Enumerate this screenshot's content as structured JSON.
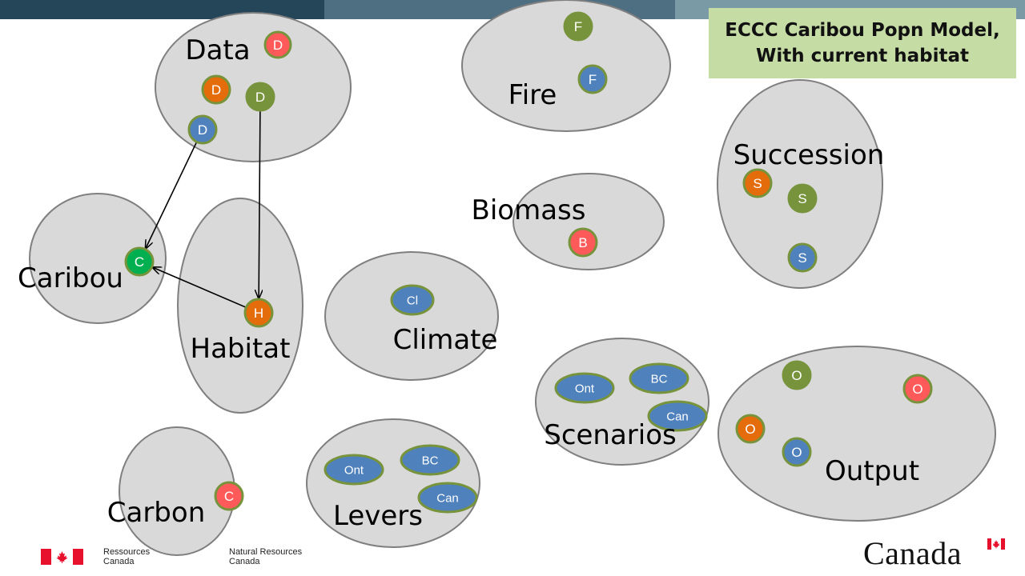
{
  "title": {
    "line1": "ECCC Caribou Popn Model,",
    "line2": "With current habitat"
  },
  "colors": {
    "cluster_fill": "#d9d9d9",
    "cluster_stroke": "#7f7f7f",
    "node_stroke": "#77933c",
    "red": "#fe5a5a",
    "orange": "#e46c0a",
    "olive": "#77933c",
    "blue": "#4f81bd",
    "green": "#00b050",
    "title_fill": "#c5dca4"
  },
  "clusters": [
    {
      "id": "data",
      "label": "Data"
    },
    {
      "id": "fire",
      "label": "Fire"
    },
    {
      "id": "succession",
      "label": "Succession"
    },
    {
      "id": "biomass",
      "label": "Biomass"
    },
    {
      "id": "caribou",
      "label": "Caribou"
    },
    {
      "id": "habitat",
      "label": "Habitat"
    },
    {
      "id": "climate",
      "label": "Climate"
    },
    {
      "id": "scenarios",
      "label": "Scenarios"
    },
    {
      "id": "output",
      "label": "Output"
    },
    {
      "id": "carbon",
      "label": "Carbon"
    },
    {
      "id": "levers",
      "label": "Levers"
    }
  ],
  "nodes": [
    {
      "id": "d_red",
      "label": "D",
      "color": "red",
      "cluster": "data"
    },
    {
      "id": "d_orange",
      "label": "D",
      "color": "orange",
      "cluster": "data"
    },
    {
      "id": "d_olive",
      "label": "D",
      "color": "olive",
      "cluster": "data"
    },
    {
      "id": "d_blue",
      "label": "D",
      "color": "blue",
      "cluster": "data"
    },
    {
      "id": "f_olive",
      "label": "F",
      "color": "olive",
      "cluster": "fire"
    },
    {
      "id": "f_blue",
      "label": "F",
      "color": "blue",
      "cluster": "fire"
    },
    {
      "id": "s_orange",
      "label": "S",
      "color": "orange",
      "cluster": "succession"
    },
    {
      "id": "s_olive",
      "label": "S",
      "color": "olive",
      "cluster": "succession"
    },
    {
      "id": "s_blue",
      "label": "S",
      "color": "blue",
      "cluster": "succession"
    },
    {
      "id": "b_red",
      "label": "B",
      "color": "red",
      "cluster": "biomass"
    },
    {
      "id": "c_green",
      "label": "C",
      "color": "green",
      "cluster": "caribou"
    },
    {
      "id": "h_orange",
      "label": "H",
      "color": "orange",
      "cluster": "habitat"
    },
    {
      "id": "cl_blue",
      "label": "Cl",
      "color": "blue",
      "cluster": "climate"
    },
    {
      "id": "sc_ont",
      "label": "Ont",
      "color": "blue",
      "cluster": "scenarios"
    },
    {
      "id": "sc_bc",
      "label": "BC",
      "color": "blue",
      "cluster": "scenarios"
    },
    {
      "id": "sc_can",
      "label": "Can",
      "color": "blue",
      "cluster": "scenarios"
    },
    {
      "id": "o_olive",
      "label": "O",
      "color": "olive",
      "cluster": "output"
    },
    {
      "id": "o_red",
      "label": "O",
      "color": "red",
      "cluster": "output"
    },
    {
      "id": "o_orange",
      "label": "O",
      "color": "orange",
      "cluster": "output"
    },
    {
      "id": "o_blue",
      "label": "O",
      "color": "blue",
      "cluster": "output"
    },
    {
      "id": "ca_red",
      "label": "C",
      "color": "red",
      "cluster": "carbon"
    },
    {
      "id": "lv_ont",
      "label": "Ont",
      "color": "blue",
      "cluster": "levers"
    },
    {
      "id": "lv_bc",
      "label": "BC",
      "color": "blue",
      "cluster": "levers"
    },
    {
      "id": "lv_can",
      "label": "Can",
      "color": "blue",
      "cluster": "levers"
    }
  ],
  "edges": [
    {
      "from": "d_blue",
      "to": "c_green"
    },
    {
      "from": "d_olive",
      "to": "h_orange"
    },
    {
      "from": "h_orange",
      "to": "c_green"
    }
  ],
  "footer": {
    "dept_fr_line1": "Ressources",
    "dept_fr_line2": "Canada",
    "dept_en_line1": "Natural Resources",
    "dept_en_line2": "Canada",
    "wordmark": "Canada"
  }
}
